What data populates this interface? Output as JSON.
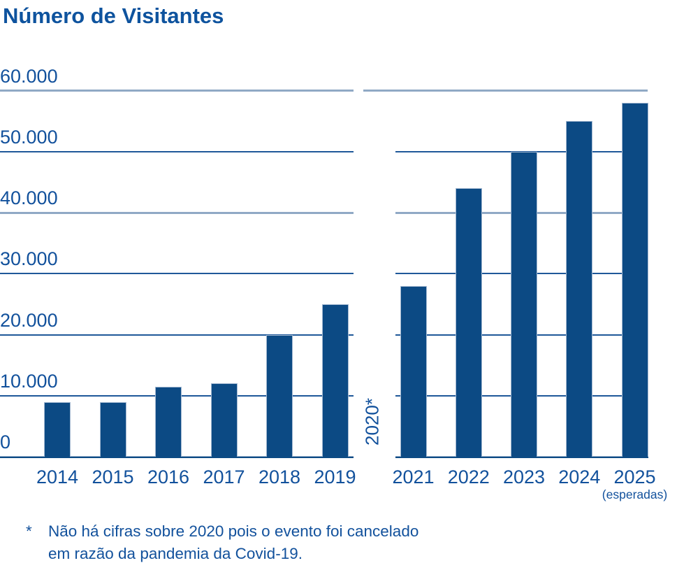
{
  "title": "Número de Visitantes",
  "colors": {
    "bar": "#0c4a84",
    "text": "#12519c",
    "grid_dark": "#1f5899",
    "grid_light": "#90a9c5",
    "baseline": "#0c4a84"
  },
  "chart_data": {
    "type": "bar",
    "title": "Número de Visitantes",
    "xlabel": "",
    "ylabel": "",
    "ylim": [
      0,
      60000
    ],
    "grid": "on",
    "legend": "none",
    "yticks": [
      0,
      10000,
      20000,
      30000,
      40000,
      50000,
      60000
    ],
    "ytick_labels": [
      "0",
      "10.000",
      "20.000",
      "30.000",
      "40.000",
      "50.000",
      "60.000"
    ],
    "groups": [
      {
        "name": "2014-2019",
        "categories": [
          "2014",
          "2015",
          "2016",
          "2017",
          "2018",
          "2019"
        ],
        "values": [
          9000,
          9000,
          11500,
          12000,
          20000,
          25000
        ]
      },
      {
        "name": "2021-2025",
        "categories": [
          "2021",
          "2022",
          "2023",
          "2024",
          "2025"
        ],
        "values": [
          28000,
          44000,
          50000,
          55000,
          58000
        ]
      }
    ],
    "gap_label": "2020*",
    "last_category_note": "(esperadas)"
  },
  "footnote": {
    "marker": "*",
    "lines": [
      "Não há cifras sobre 2020 pois o evento foi cancelado",
      "em razão da pandemia da Covid-19."
    ]
  }
}
